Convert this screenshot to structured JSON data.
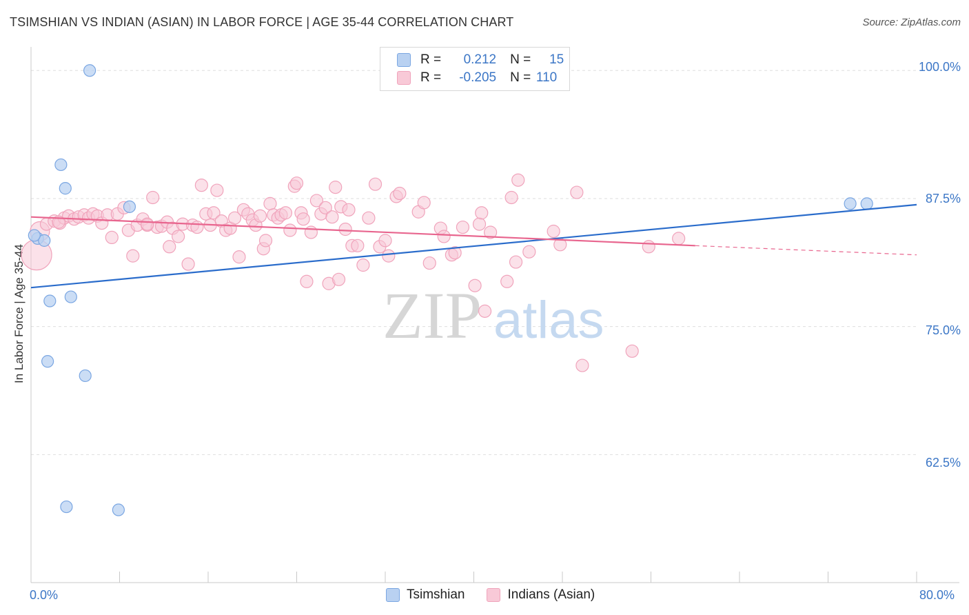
{
  "chart_data": {
    "type": "scatter",
    "title": "TSIMSHIAN VS INDIAN (ASIAN) IN LABOR FORCE | AGE 35-44 CORRELATION CHART",
    "source": "Source: ZipAtlas.com",
    "xlabel": "",
    "ylabel": "In Labor Force | Age 35-44",
    "xlim": [
      0,
      80
    ],
    "ylim": [
      50,
      101.5
    ],
    "x_tick_labels": [
      "0.0%",
      "80.0%"
    ],
    "y_ticks": [
      62.5,
      75.0,
      87.5,
      100.0
    ],
    "y_tick_labels": [
      "62.5%",
      "75.0%",
      "87.5%",
      "100.0%"
    ],
    "grid": true,
    "watermark": {
      "zip": "ZIP",
      "atlas": "atlas"
    },
    "legend_stats": [
      {
        "r_label": "R =",
        "r_value": "0.212",
        "n_label": "N =",
        "n_value": "15"
      },
      {
        "r_label": "R =",
        "r_value": "-0.205",
        "n_label": "N =",
        "n_value": "110"
      }
    ],
    "series": [
      {
        "name": "Tsimshian",
        "color": "#7aa6e2",
        "fill": "#b9d1f1",
        "line_color": "#2a6ccb",
        "trend": {
          "x": [
            0,
            80
          ],
          "y": [
            78.8,
            86.9
          ]
        },
        "points": [
          [
            5.3,
            100.0
          ],
          [
            2.7,
            90.8
          ],
          [
            3.1,
            88.5
          ],
          [
            0.6,
            83.6
          ],
          [
            1.2,
            83.4
          ],
          [
            1.7,
            77.5
          ],
          [
            3.6,
            77.9
          ],
          [
            1.5,
            71.6
          ],
          [
            4.9,
            70.2
          ],
          [
            3.2,
            57.4
          ],
          [
            7.9,
            57.1
          ],
          [
            8.9,
            86.7
          ],
          [
            74.0,
            87.0
          ],
          [
            75.5,
            87.0
          ],
          [
            0.3,
            83.9
          ]
        ]
      },
      {
        "name": "Indians (Asian)",
        "color": "#f0a3bb",
        "fill": "#f8c9d7",
        "line_color": "#e8658e",
        "trend": {
          "x": [
            0,
            60
          ],
          "y": [
            85.7,
            82.9
          ]
        },
        "trend_extension": {
          "x": [
            60,
            80
          ],
          "y": [
            82.9,
            82.0
          ]
        },
        "points": [
          [
            0.5,
            82.0
          ],
          [
            0.8,
            84.3
          ],
          [
            1.4,
            85.0
          ],
          [
            2.1,
            85.3
          ],
          [
            2.6,
            85.1
          ],
          [
            3.0,
            85.6
          ],
          [
            3.4,
            85.8
          ],
          [
            3.9,
            85.5
          ],
          [
            4.3,
            85.7
          ],
          [
            4.8,
            85.9
          ],
          [
            5.2,
            85.6
          ],
          [
            5.6,
            86.0
          ],
          [
            6.0,
            85.8
          ],
          [
            6.4,
            85.1
          ],
          [
            6.9,
            85.9
          ],
          [
            7.3,
            83.7
          ],
          [
            7.8,
            86.0
          ],
          [
            8.4,
            86.6
          ],
          [
            8.8,
            84.4
          ],
          [
            9.2,
            81.9
          ],
          [
            9.6,
            84.9
          ],
          [
            10.1,
            85.5
          ],
          [
            10.5,
            84.9
          ],
          [
            11.0,
            87.6
          ],
          [
            11.4,
            84.7
          ],
          [
            11.8,
            84.8
          ],
          [
            12.3,
            85.2
          ],
          [
            12.5,
            82.8
          ],
          [
            12.8,
            84.6
          ],
          [
            13.3,
            83.8
          ],
          [
            13.7,
            85.0
          ],
          [
            14.2,
            81.1
          ],
          [
            14.6,
            84.9
          ],
          [
            15.0,
            84.7
          ],
          [
            15.4,
            88.8
          ],
          [
            15.8,
            86.0
          ],
          [
            16.2,
            84.9
          ],
          [
            16.5,
            86.1
          ],
          [
            16.8,
            88.3
          ],
          [
            17.2,
            85.3
          ],
          [
            17.6,
            84.4
          ],
          [
            18.0,
            84.6
          ],
          [
            18.4,
            85.6
          ],
          [
            18.8,
            81.8
          ],
          [
            19.2,
            86.4
          ],
          [
            19.6,
            86.0
          ],
          [
            20.0,
            85.4
          ],
          [
            20.3,
            84.9
          ],
          [
            20.7,
            85.8
          ],
          [
            21.0,
            82.6
          ],
          [
            21.2,
            83.4
          ],
          [
            21.6,
            87.0
          ],
          [
            21.9,
            85.9
          ],
          [
            22.3,
            85.6
          ],
          [
            22.6,
            85.9
          ],
          [
            23.0,
            86.1
          ],
          [
            23.4,
            84.4
          ],
          [
            23.8,
            88.7
          ],
          [
            24.0,
            89.0
          ],
          [
            24.4,
            86.1
          ],
          [
            24.6,
            85.5
          ],
          [
            24.9,
            79.4
          ],
          [
            25.3,
            84.2
          ],
          [
            25.8,
            87.3
          ],
          [
            26.2,
            86.0
          ],
          [
            26.6,
            86.6
          ],
          [
            26.9,
            79.2
          ],
          [
            27.2,
            85.7
          ],
          [
            27.5,
            88.6
          ],
          [
            27.8,
            79.6
          ],
          [
            28.0,
            86.7
          ],
          [
            28.4,
            84.5
          ],
          [
            28.7,
            86.4
          ],
          [
            29.0,
            82.9
          ],
          [
            29.5,
            82.9
          ],
          [
            30.0,
            81.0
          ],
          [
            30.5,
            85.6
          ],
          [
            31.1,
            88.9
          ],
          [
            31.5,
            82.8
          ],
          [
            32.0,
            83.4
          ],
          [
            32.3,
            81.9
          ],
          [
            33.0,
            87.7
          ],
          [
            33.3,
            88.0
          ],
          [
            35.0,
            86.2
          ],
          [
            35.5,
            87.1
          ],
          [
            36.0,
            81.2
          ],
          [
            37.0,
            84.6
          ],
          [
            37.3,
            83.8
          ],
          [
            38.0,
            82.0
          ],
          [
            38.3,
            82.2
          ],
          [
            39.0,
            84.7
          ],
          [
            40.1,
            79.0
          ],
          [
            40.5,
            85.0
          ],
          [
            40.7,
            86.1
          ],
          [
            41.0,
            76.5
          ],
          [
            41.5,
            84.2
          ],
          [
            43.0,
            79.4
          ],
          [
            43.4,
            87.6
          ],
          [
            43.8,
            81.3
          ],
          [
            44.0,
            89.3
          ],
          [
            45.0,
            82.3
          ],
          [
            47.2,
            84.3
          ],
          [
            47.8,
            83.0
          ],
          [
            49.3,
            88.1
          ],
          [
            49.8,
            71.2
          ],
          [
            54.3,
            72.6
          ],
          [
            55.8,
            82.8
          ],
          [
            58.5,
            83.6
          ],
          [
            10.5,
            85.0
          ],
          [
            2.5,
            85.2
          ]
        ]
      }
    ]
  }
}
